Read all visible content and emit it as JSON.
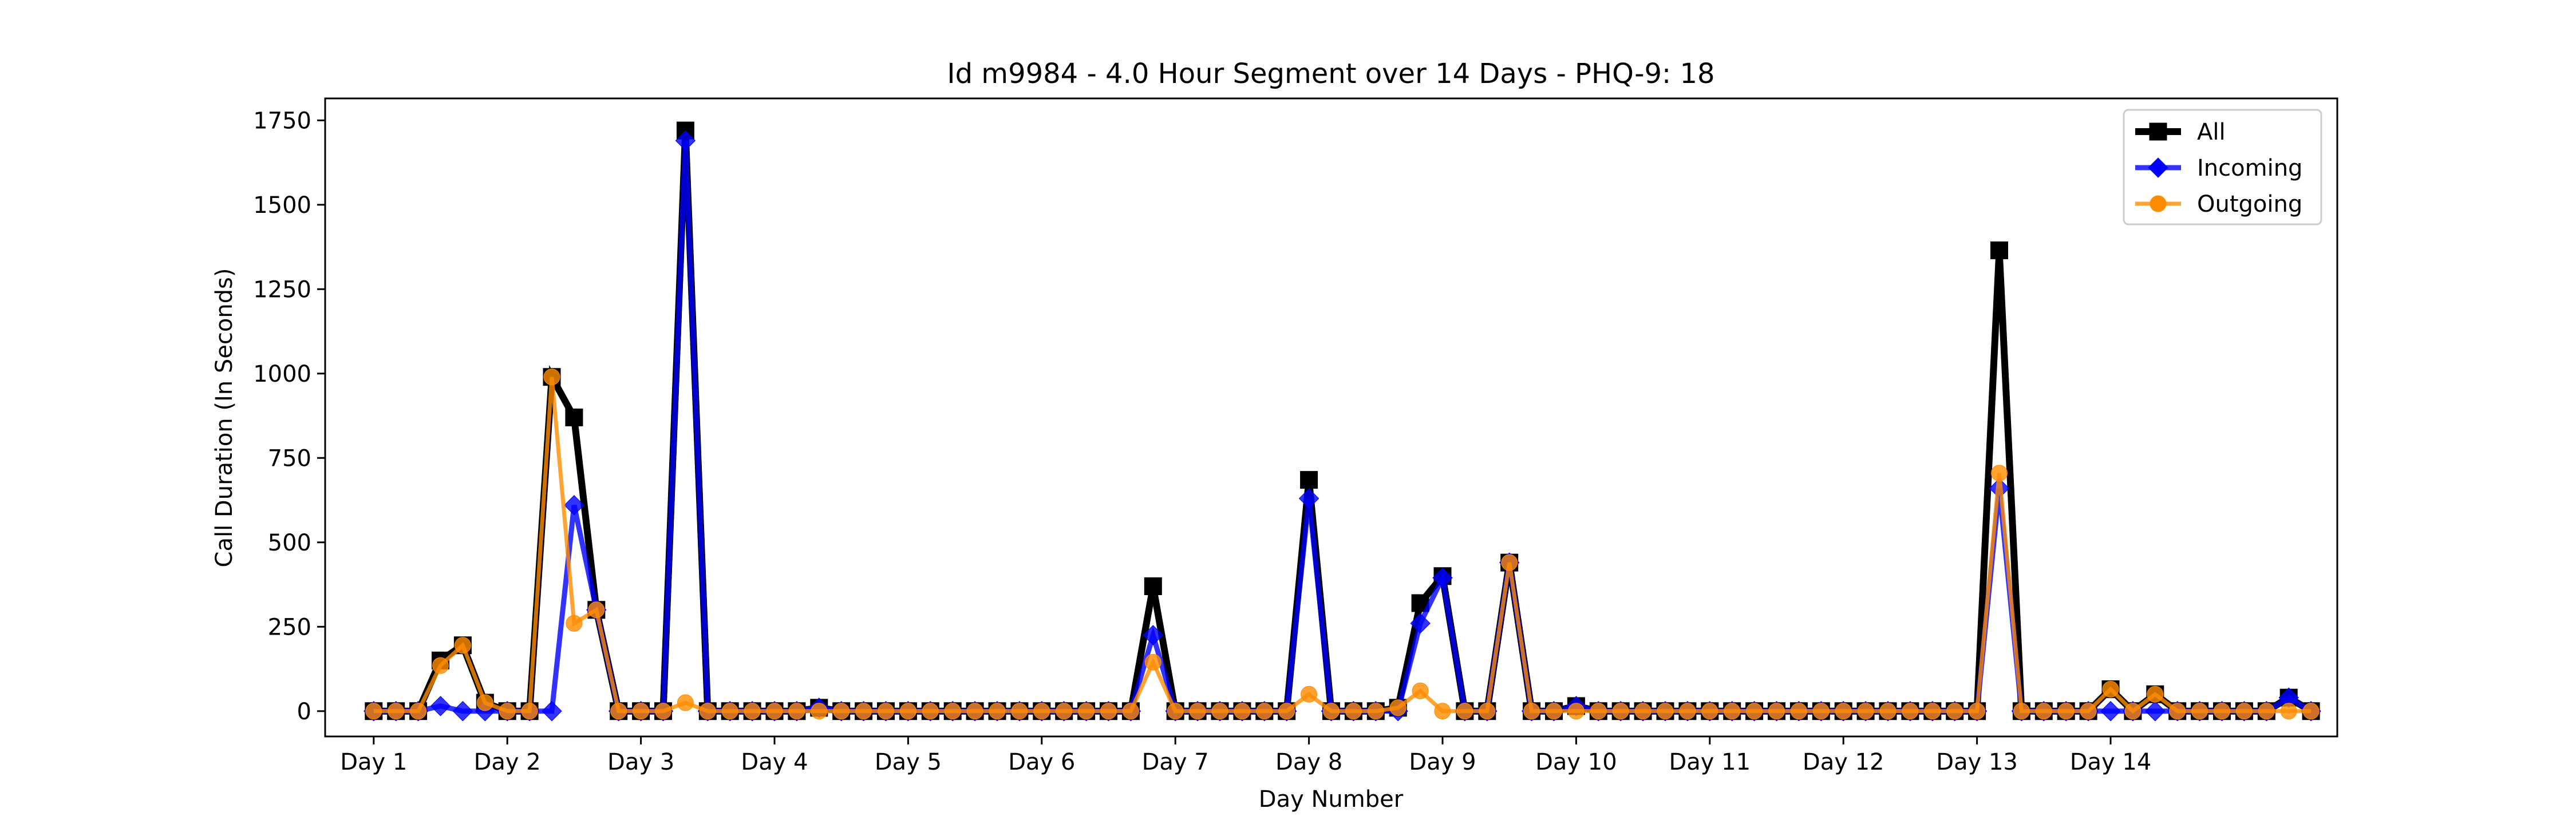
{
  "chart_data": {
    "type": "line",
    "title": "Id m9984 - 4.0 Hour Segment over 14 Days - PHQ-9: 18",
    "xlabel": "Day Number",
    "ylabel": "Call Duration (In Seconds)",
    "ylim": [
      -75,
      1815
    ],
    "yticks": [
      0,
      250,
      500,
      750,
      1000,
      1250,
      1500,
      1750
    ],
    "xlim": [
      -2.18,
      88.18
    ],
    "xticks": [
      {
        "x": 0,
        "label": "Day 1"
      },
      {
        "x": 6,
        "label": "Day 2"
      },
      {
        "x": 12,
        "label": "Day 3"
      },
      {
        "x": 18,
        "label": "Day 4"
      },
      {
        "x": 24,
        "label": "Day 5"
      },
      {
        "x": 30,
        "label": "Day 6"
      },
      {
        "x": 36,
        "label": "Day 7"
      },
      {
        "x": 42,
        "label": "Day 8"
      },
      {
        "x": 48,
        "label": "Day 9"
      },
      {
        "x": 54,
        "label": "Day 10"
      },
      {
        "x": 60,
        "label": "Day 11"
      },
      {
        "x": 66,
        "label": "Day 12"
      },
      {
        "x": 72,
        "label": "Day 13"
      },
      {
        "x": 78,
        "label": "Day 14"
      }
    ],
    "grid": false,
    "legend_position": "top-right",
    "series": [
      {
        "name": "All",
        "color": "#000000",
        "marker": "square",
        "values": [
          0,
          0,
          0,
          150,
          195,
          25,
          0,
          0,
          990,
          870,
          300,
          0,
          0,
          0,
          1720,
          0,
          0,
          0,
          0,
          0,
          10,
          0,
          0,
          0,
          0,
          0,
          0,
          0,
          0,
          0,
          0,
          0,
          0,
          0,
          0,
          370,
          0,
          0,
          0,
          0,
          0,
          0,
          685,
          0,
          0,
          0,
          10,
          320,
          400,
          0,
          0,
          440,
          0,
          0,
          15,
          0,
          0,
          0,
          0,
          0,
          0,
          0,
          0,
          0,
          0,
          0,
          0,
          0,
          0,
          0,
          0,
          0,
          0,
          1365,
          0,
          0,
          0,
          0,
          65,
          0,
          50,
          0,
          0,
          0,
          0,
          0,
          40,
          0
        ]
      },
      {
        "name": "Incoming",
        "color": "#0000ff",
        "marker": "diamond",
        "values": [
          0,
          0,
          0,
          15,
          0,
          0,
          0,
          0,
          0,
          610,
          300,
          0,
          0,
          0,
          1690,
          0,
          0,
          0,
          0,
          0,
          10,
          0,
          0,
          0,
          0,
          0,
          0,
          0,
          0,
          0,
          0,
          0,
          0,
          0,
          0,
          225,
          0,
          0,
          0,
          0,
          0,
          0,
          630,
          0,
          0,
          0,
          0,
          260,
          395,
          0,
          0,
          440,
          0,
          0,
          15,
          0,
          0,
          0,
          0,
          0,
          0,
          0,
          0,
          0,
          0,
          0,
          0,
          0,
          0,
          0,
          0,
          0,
          0,
          660,
          0,
          0,
          0,
          0,
          0,
          0,
          0,
          0,
          0,
          0,
          0,
          0,
          40,
          0
        ]
      },
      {
        "name": "Outgoing",
        "color": "#ff8c00",
        "marker": "circle",
        "values": [
          0,
          0,
          0,
          135,
          195,
          25,
          0,
          0,
          990,
          260,
          300,
          0,
          0,
          0,
          25,
          0,
          0,
          0,
          0,
          0,
          0,
          0,
          0,
          0,
          0,
          0,
          0,
          0,
          0,
          0,
          0,
          0,
          0,
          0,
          0,
          145,
          0,
          0,
          0,
          0,
          0,
          0,
          50,
          0,
          0,
          0,
          10,
          60,
          0,
          0,
          0,
          440,
          0,
          0,
          0,
          0,
          0,
          0,
          0,
          0,
          0,
          0,
          0,
          0,
          0,
          0,
          0,
          0,
          0,
          0,
          0,
          0,
          0,
          705,
          0,
          0,
          0,
          0,
          65,
          0,
          50,
          0,
          0,
          0,
          0,
          0,
          0,
          0
        ]
      }
    ]
  }
}
